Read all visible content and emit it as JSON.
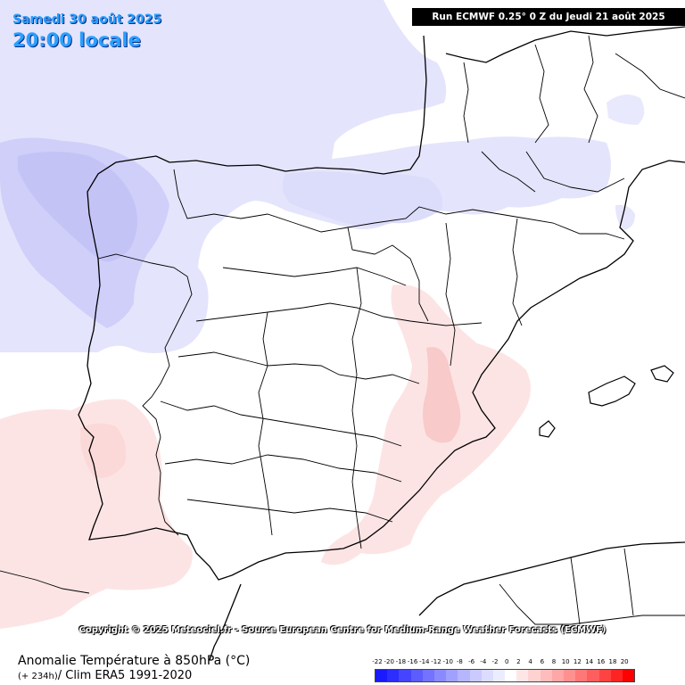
{
  "header": {
    "date": "Samedi 30 août 2025",
    "time": "20:00 locale",
    "run": "Run ECMWF 0.25° 0 Z du Jeudi 21 août 2025"
  },
  "copyright": "Copyright © 2025 Meteociel.fr - Source European Centre for Medium-Range Weather Forecasts (ECMWF)",
  "legend": {
    "title": "Anomalie Température à 850hPa (°C)",
    "lead": "(+ 234h)",
    "clim": "/ Clim ERA5 1991-2020",
    "ticks": [
      "-22",
      "-20",
      "-18",
      "-16",
      "-14",
      "-12",
      "-10",
      "-8",
      "-6",
      "-4",
      "-2",
      "0",
      "2",
      "4",
      "6",
      "8",
      "10",
      "12",
      "14",
      "16",
      "18",
      "20"
    ],
    "colors": [
      "#1a1aff",
      "#2d2dff",
      "#4545ff",
      "#5c5cff",
      "#7373ff",
      "#8a8aff",
      "#a0a0ff",
      "#b6b6ff",
      "#cacaff",
      "#dcdcff",
      "#ececff",
      "#ffffff",
      "#ffe6e6",
      "#ffd2d2",
      "#ffbcbc",
      "#ffa6a6",
      "#ff9090",
      "#ff7878",
      "#ff5e5e",
      "#ff4343",
      "#ff2424",
      "#ff0000"
    ]
  },
  "anomaly_colors": {
    "cold_1": "#e4e4fc",
    "cold_2": "#cfcffa",
    "cold_3": "#bcbcf5",
    "warm_1": "#fde4e4",
    "warm_2": "#f8caca"
  }
}
